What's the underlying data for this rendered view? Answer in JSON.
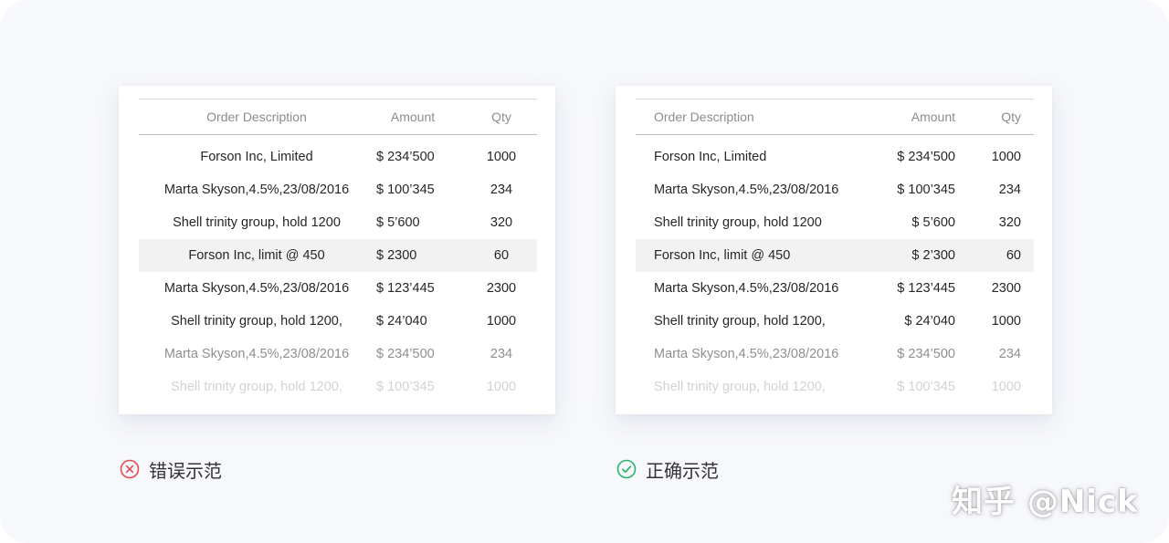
{
  "colors": {
    "background": "#f7f8fc",
    "card": "#ffffff",
    "highlight_row": "#f2f2f2",
    "wrong_badge": "#e5484d",
    "right_badge": "#26b36b"
  },
  "columns": {
    "description": "Order Description",
    "amount": "Amount",
    "qty": "Qty"
  },
  "wrong_example": {
    "caption": "错误示范",
    "rows": [
      {
        "description": "Forson Inc, Limited",
        "amount": "$ 234’500",
        "qty": "1000"
      },
      {
        "description": "Marta Skyson,4.5%,23/08/2016",
        "amount": "$ 100’345",
        "qty": "234"
      },
      {
        "description": "Shell trinity group, hold 1200",
        "amount": "$ 5’600",
        "qty": "320"
      },
      {
        "description": "Forson Inc, limit @ 450",
        "amount": "$ 2300",
        "qty": "60"
      },
      {
        "description": "Marta Skyson,4.5%,23/08/2016",
        "amount": "$ 123’445",
        "qty": "2300"
      },
      {
        "description": "Shell trinity group, hold 1200,",
        "amount": "$ 24’040",
        "qty": "1000"
      },
      {
        "description": "Marta Skyson,4.5%,23/08/2016",
        "amount": "$ 234’500",
        "qty": "234"
      },
      {
        "description": "Shell trinity group, hold 1200,",
        "amount": "$ 100’345",
        "qty": "1000"
      }
    ]
  },
  "right_example": {
    "caption": "正确示范",
    "rows": [
      {
        "description": "Forson Inc, Limited",
        "amount": "$ 234’500",
        "qty": "1000"
      },
      {
        "description": "Marta Skyson,4.5%,23/08/2016",
        "amount": "$ 100’345",
        "qty": "234"
      },
      {
        "description": "Shell trinity group, hold 1200",
        "amount": "$ 5’600",
        "qty": "320"
      },
      {
        "description": "Forson Inc, limit @ 450",
        "amount": "$ 2’300",
        "qty": "60"
      },
      {
        "description": "Marta Skyson,4.5%,23/08/2016",
        "amount": "$ 123’445",
        "qty": "2300"
      },
      {
        "description": "Shell trinity group, hold 1200,",
        "amount": "$ 24’040",
        "qty": "1000"
      },
      {
        "description": "Marta Skyson,4.5%,23/08/2016",
        "amount": "$ 234’500",
        "qty": "234"
      },
      {
        "description": "Shell trinity group, hold 1200,",
        "amount": "$ 100’345",
        "qty": "1000"
      }
    ]
  },
  "watermark": "知乎 @Nick"
}
